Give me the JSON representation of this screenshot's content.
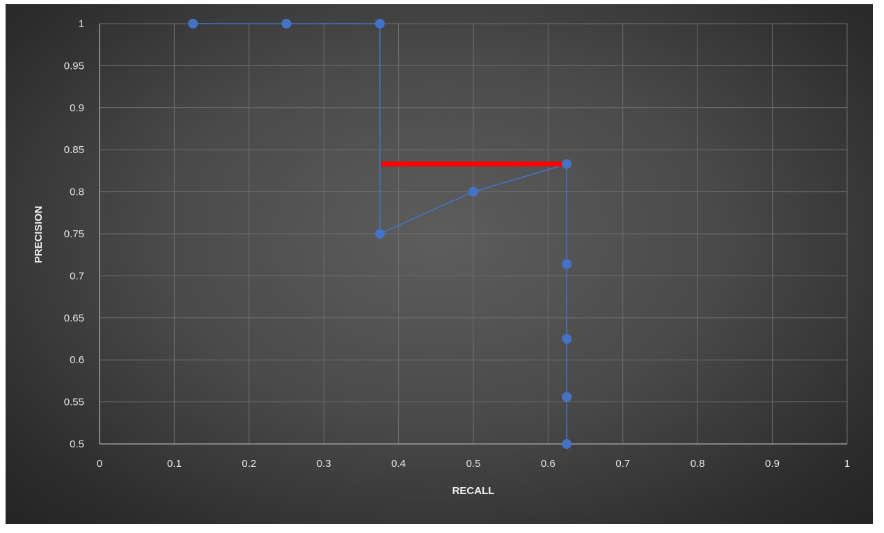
{
  "chart_data": {
    "type": "line",
    "xlabel": "RECALL",
    "ylabel": "PRECISION",
    "xlim": [
      0,
      1
    ],
    "ylim": [
      0.5,
      1
    ],
    "x_ticks": [
      "0",
      "0.1",
      "0.2",
      "0.3",
      "0.4",
      "0.5",
      "0.6",
      "0.7",
      "0.8",
      "0.9",
      "1"
    ],
    "y_ticks": [
      "0.5",
      "0.55",
      "0.6",
      "0.65",
      "0.7",
      "0.75",
      "0.8",
      "0.85",
      "0.9",
      "0.95",
      "1"
    ],
    "grid": true,
    "series": [
      {
        "color": "#4472c4",
        "points": [
          {
            "x": 0.125,
            "y": 1.0
          },
          {
            "x": 0.25,
            "y": 1.0
          },
          {
            "x": 0.375,
            "y": 1.0
          },
          {
            "x": 0.375,
            "y": 0.75
          },
          {
            "x": 0.5,
            "y": 0.8
          },
          {
            "x": 0.625,
            "y": 0.833
          },
          {
            "x": 0.625,
            "y": 0.714
          },
          {
            "x": 0.625,
            "y": 0.625
          },
          {
            "x": 0.625,
            "y": 0.556
          },
          {
            "x": 0.625,
            "y": 0.5
          }
        ]
      }
    ],
    "annotations": [
      {
        "type": "segment",
        "color": "#ff0000",
        "x1": 0.375,
        "y1": 0.833,
        "x2": 0.625,
        "y2": 0.833
      }
    ],
    "colors": {
      "grid": "#6e6e6e",
      "axis": "#9a9a9a",
      "text": "#e6e6e6",
      "marker": "#4472c4"
    }
  }
}
